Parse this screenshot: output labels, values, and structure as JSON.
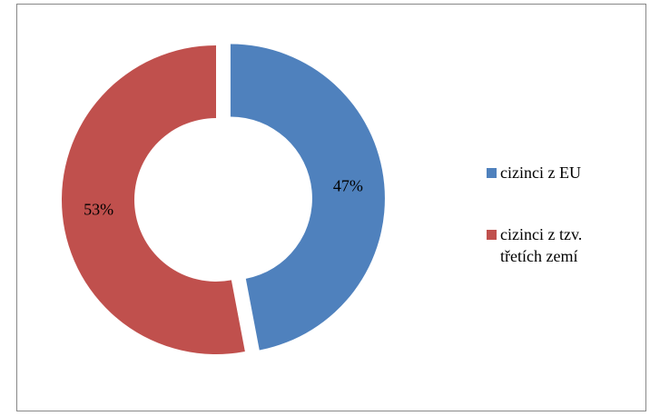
{
  "chart_data": {
    "type": "donut",
    "categories": [
      "cizinci z EU",
      "cizinci z tzv. třetích zemí"
    ],
    "values": [
      47,
      53
    ],
    "value_labels": [
      "47%",
      "53%"
    ],
    "colors": [
      "#4f81bd",
      "#c0504d"
    ],
    "legend": "right"
  }
}
